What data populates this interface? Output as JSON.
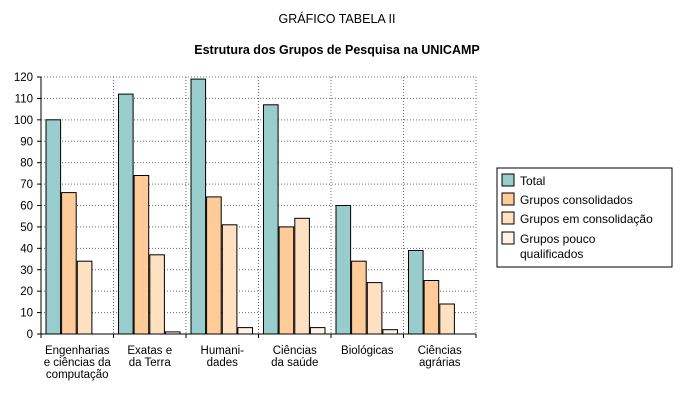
{
  "chart_data": {
    "type": "bar",
    "supertitle": "GRÁFICO TABELA II",
    "title": "Estrutura dos Grupos de Pesquisa na UNICAMP",
    "xlabel": "",
    "ylabel": "",
    "ylim": [
      0,
      120
    ],
    "yticks": [
      0,
      10,
      20,
      30,
      40,
      50,
      60,
      70,
      80,
      90,
      100,
      110,
      120
    ],
    "grid": true,
    "legend_position": "right",
    "categories": [
      [
        "Engenharias",
        "e ciências da",
        "computação"
      ],
      [
        "Exatas e",
        "da Terra"
      ],
      [
        "Humani-",
        "dades"
      ],
      [
        "Ciências",
        "da saúde"
      ],
      [
        "Biológicas"
      ],
      [
        "Ciências",
        "agrárias"
      ]
    ],
    "series": [
      {
        "name": "Total",
        "color": "#99cccc",
        "values": [
          100,
          112,
          119,
          107,
          60,
          39
        ]
      },
      {
        "name": "Grupos consolidados",
        "color": "#ffcc99",
        "values": [
          66,
          74,
          64,
          50,
          34,
          25
        ]
      },
      {
        "name": "Grupos em consolidação",
        "color": "#ffe0c0",
        "values": [
          34,
          37,
          51,
          54,
          24,
          14
        ]
      },
      {
        "name": "Grupos pouco qualificados",
        "name_lines": [
          "Grupos pouco",
          "qualificados"
        ],
        "color": "#fff2e6",
        "values": [
          0,
          1,
          3,
          3,
          2,
          0
        ]
      }
    ]
  }
}
